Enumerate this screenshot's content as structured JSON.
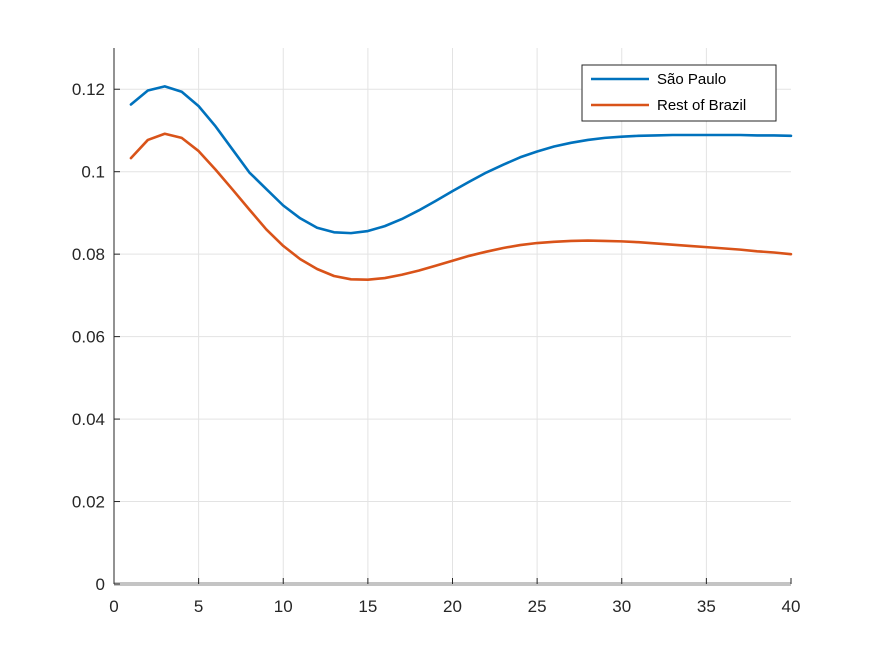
{
  "chart_data": {
    "type": "line",
    "title": "",
    "xlabel": "",
    "ylabel": "",
    "xlim": [
      0,
      40
    ],
    "ylim": [
      0,
      0.13
    ],
    "xticks": [
      0,
      5,
      10,
      15,
      20,
      25,
      30,
      35,
      40
    ],
    "xtick_labels": [
      "0",
      "5",
      "10",
      "15",
      "20",
      "25",
      "30",
      "35",
      "40"
    ],
    "yticks": [
      0,
      0.02,
      0.04,
      0.06,
      0.08,
      0.1,
      0.12
    ],
    "ytick_labels": [
      "0",
      "0.02",
      "0.04",
      "0.06",
      "0.08",
      "0.1",
      "0.12"
    ],
    "grid": true,
    "legend_position": "top-right",
    "x": [
      1,
      2,
      3,
      4,
      5,
      6,
      7,
      8,
      9,
      10,
      11,
      12,
      13,
      14,
      15,
      16,
      17,
      18,
      19,
      20,
      21,
      22,
      23,
      24,
      25,
      26,
      27,
      28,
      29,
      30,
      31,
      32,
      33,
      34,
      35,
      36,
      37,
      38,
      39,
      40
    ],
    "series": [
      {
        "name": "São Paulo",
        "color": "#0072BD",
        "values": [
          0.1163,
          0.1197,
          0.1207,
          0.1194,
          0.1159,
          0.111,
          0.1054,
          0.0998,
          0.0958,
          0.0918,
          0.0887,
          0.0864,
          0.0853,
          0.0851,
          0.0856,
          0.0868,
          0.0885,
          0.0906,
          0.0929,
          0.0953,
          0.0976,
          0.0998,
          0.1017,
          0.1035,
          0.1049,
          0.1061,
          0.107,
          0.1077,
          0.1082,
          0.1085,
          0.1087,
          0.1088,
          0.1089,
          0.1089,
          0.1089,
          0.1089,
          0.1089,
          0.1088,
          0.1088,
          0.1087
        ]
      },
      {
        "name": "Rest of Brazil",
        "color": "#D95319",
        "values": [
          0.1033,
          0.1077,
          0.1092,
          0.1082,
          0.105,
          0.1005,
          0.0957,
          0.0908,
          0.086,
          0.082,
          0.0788,
          0.0764,
          0.0747,
          0.0739,
          0.0738,
          0.0742,
          0.075,
          0.076,
          0.0772,
          0.0784,
          0.0796,
          0.0806,
          0.0815,
          0.0822,
          0.0827,
          0.083,
          0.0832,
          0.0833,
          0.0832,
          0.0831,
          0.0829,
          0.0826,
          0.0823,
          0.082,
          0.0817,
          0.0814,
          0.0811,
          0.0807,
          0.0804,
          0.08
        ]
      }
    ]
  }
}
